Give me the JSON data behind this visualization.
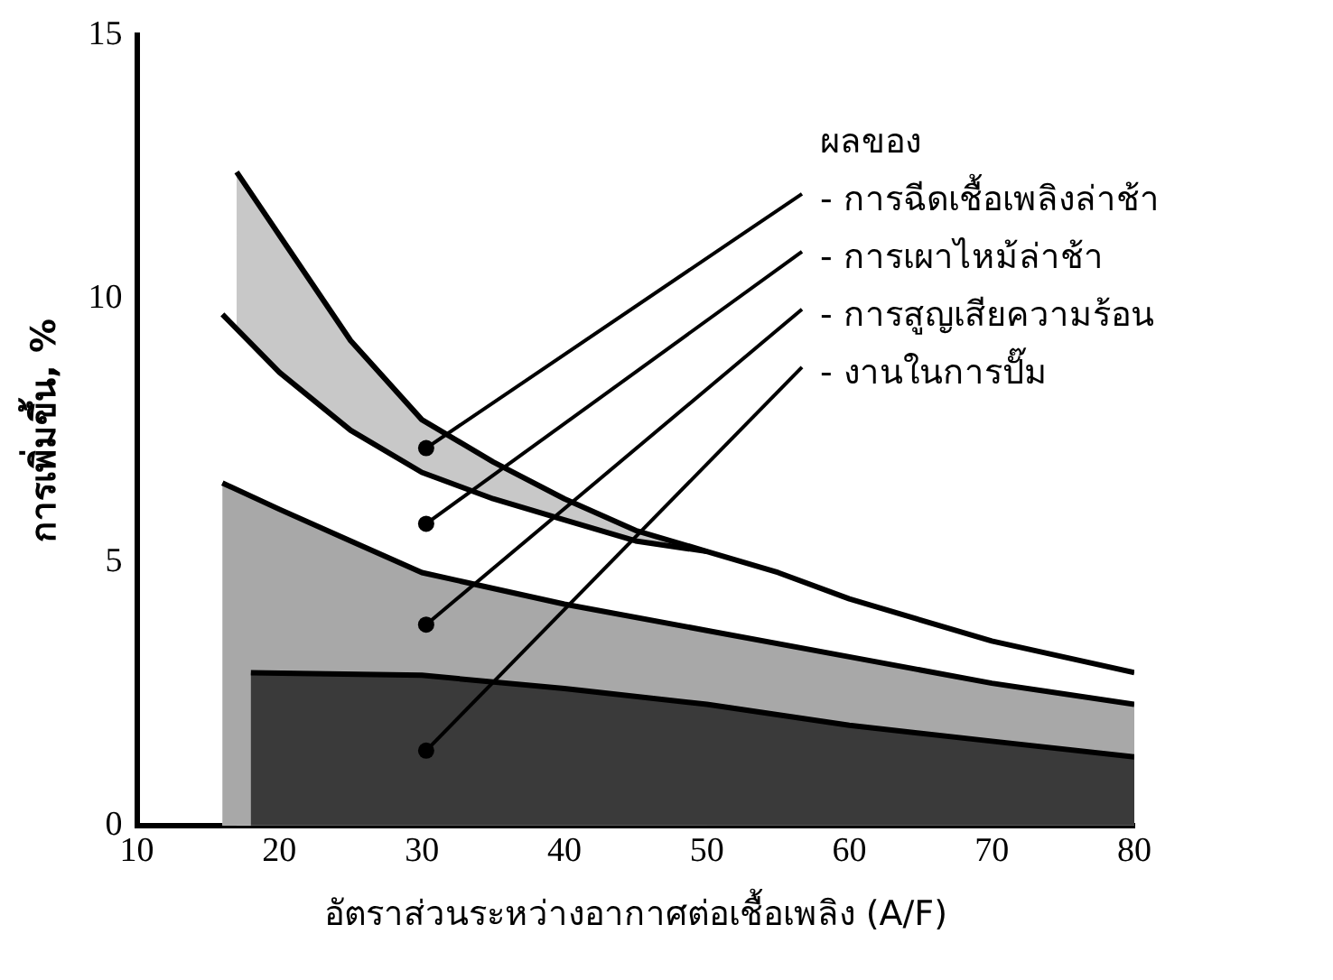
{
  "chart_data": {
    "type": "area",
    "xlabel": "อัตราส่วนระหว่างอากาศต่อเชื้อเพลิง (A/F)",
    "ylabel": "การเพิ่มขึ้น, %",
    "legend_title": "ผลของ",
    "xlim": [
      10,
      80
    ],
    "xticks": [
      10,
      20,
      30,
      40,
      50,
      60,
      70,
      80
    ],
    "ylim": [
      0,
      15
    ],
    "yticks": [
      0,
      5,
      10,
      15
    ],
    "grid": false,
    "legend": false,
    "series": [
      {
        "name": "- การฉีดเชื้อเพลิงล่าช้า",
        "color": "#c8c8c8",
        "x": [
          17,
          20,
          25,
          30,
          35,
          40,
          45,
          50
        ],
        "values": [
          12.4,
          11.2,
          9.2,
          7.7,
          6.9,
          6.2,
          5.6,
          5.2
        ]
      },
      {
        "name": "- การเผาไหม้ล่าช้า",
        "color": "#ffffff",
        "x": [
          16,
          20,
          25,
          30,
          35,
          40,
          45,
          50,
          55,
          60,
          65,
          70,
          75,
          80
        ],
        "values": [
          9.7,
          8.6,
          7.5,
          6.7,
          6.2,
          5.8,
          5.4,
          5.2,
          4.8,
          4.3,
          3.9,
          3.5,
          3.2,
          2.9
        ]
      },
      {
        "name": "- การสูญเสียความร้อน",
        "color": "#a8a8a8",
        "x": [
          16,
          20,
          25,
          30,
          40,
          50,
          60,
          70,
          80
        ],
        "values": [
          6.5,
          6.0,
          5.4,
          4.8,
          4.2,
          3.7,
          3.2,
          2.7,
          2.3
        ]
      },
      {
        "name": "- งานในการปั๊ม",
        "color": "#3a3a3a",
        "x": [
          18,
          30,
          40,
          50,
          60,
          70,
          80
        ],
        "values": [
          2.9,
          2.85,
          2.6,
          2.3,
          1.9,
          1.6,
          1.3
        ]
      }
    ]
  }
}
